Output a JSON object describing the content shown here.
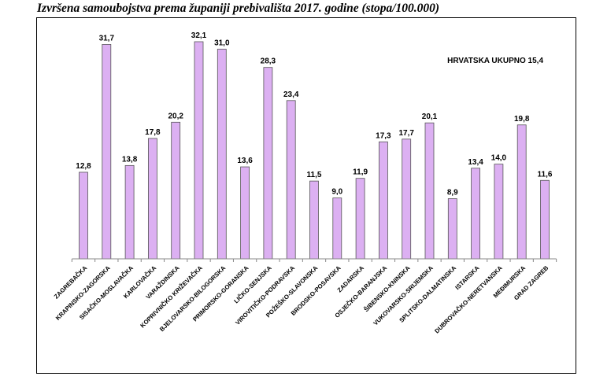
{
  "title": "Izvršena samoubojstva  prema županiji prebivališta 2017. godine (stopa/100.000)",
  "chart_data": {
    "type": "bar",
    "title": "Izvršena samoubojstva  prema županiji prebivališta 2017. godine (stopa/100.000)",
    "annotation": "HRVATSKA UKUPNO 15,4",
    "categories": [
      "ZAGREBAČKA",
      "KRAPINSKO-ZAGORSKA",
      "SISAČKO-MOSLAVAČKA",
      "KARLOVAČKA",
      "VARAŽDINSKA",
      "KOPRIVNIČKO KRIŽEVAČKA",
      "BJELOVARSKO-BILOGORSKA",
      "PRIMORSKO-GORANSKA",
      "LIČKO-SENJSKA",
      "VIROVITIČKO-PODRAVSKA",
      "POŽEŠKO-SLAVONSKA",
      "BRODSKO-POSAVSKA",
      "ZADARSKA",
      "OSJEČKO-BARANJSKA",
      "ŠIBENSKO-KNINSKA",
      "VUKOVARSKO-SRIJEMSKA",
      "SPLITSKO-DALMATINSKA",
      "ISTARSKA",
      "DUBROVAČKO-NERETVANSKA",
      "MEĐIMURSKA",
      "GRAD ZAGREB"
    ],
    "values": [
      12.8,
      31.7,
      13.8,
      17.8,
      20.2,
      32.1,
      31.0,
      13.6,
      28.3,
      23.4,
      11.5,
      9.0,
      11.9,
      17.3,
      17.7,
      20.1,
      8.9,
      13.4,
      14.0,
      19.8,
      11.6
    ],
    "value_labels": [
      "12,8",
      "31,7",
      "13,8",
      "17,8",
      "20,2",
      "32,1",
      "31,0",
      "13,6",
      "28,3",
      "23,4",
      "11,5",
      "9,0",
      "11,9",
      "17,3",
      "17,7",
      "20,1",
      "8,9",
      "13,4",
      "14,0",
      "19,8",
      "11,6"
    ],
    "ylim": [
      0,
      32.1
    ],
    "grid": false,
    "colors": {
      "bar_fill": "#dcb0f2",
      "bar_stroke": "#555555"
    }
  }
}
